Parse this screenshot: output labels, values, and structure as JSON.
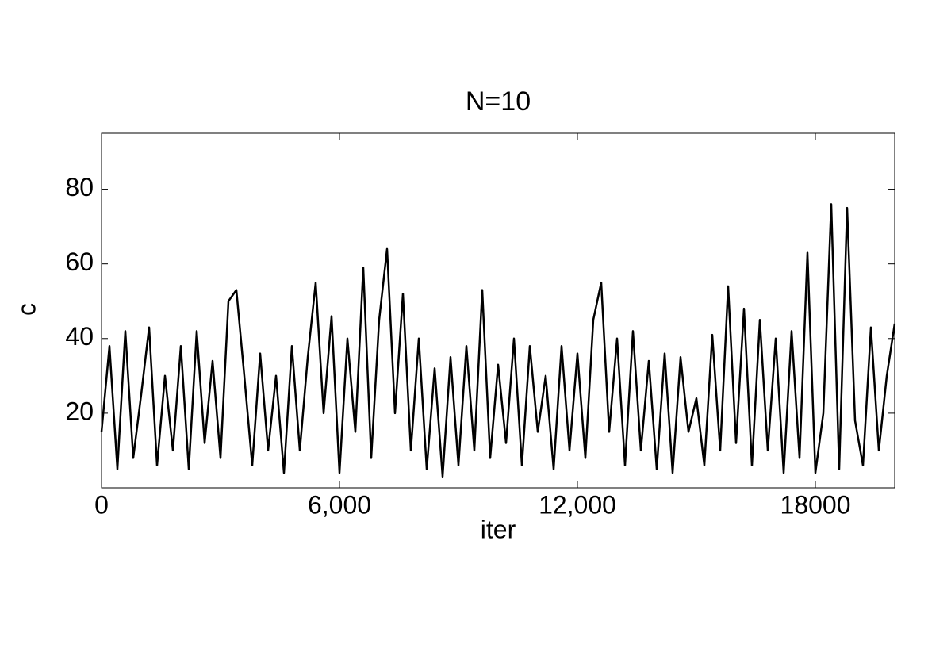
{
  "chart_data": {
    "type": "line",
    "title": "N=10",
    "x_label": "iter",
    "y_label": "c",
    "x": [
      0,
      200,
      400,
      600,
      800,
      1000,
      1200,
      1400,
      1600,
      1800,
      2000,
      2200,
      2400,
      2600,
      2800,
      3000,
      3200,
      3400,
      3600,
      3800,
      4000,
      4200,
      4400,
      4600,
      4800,
      5000,
      5200,
      5400,
      5600,
      5800,
      6000,
      6200,
      6400,
      6600,
      6800,
      7000,
      7200,
      7400,
      7600,
      7800,
      8000,
      8200,
      8400,
      8600,
      8800,
      9000,
      9200,
      9400,
      9600,
      9800,
      10000,
      10200,
      10400,
      10600,
      10800,
      11000,
      11200,
      11400,
      11600,
      11800,
      12000,
      12200,
      12400,
      12600,
      12800,
      13000,
      13200,
      13400,
      13600,
      13800,
      14000,
      14200,
      14400,
      14600,
      14800,
      15000,
      15200,
      15400,
      15600,
      15800,
      16000,
      16200,
      16400,
      16600,
      16800,
      17000,
      17200,
      17400,
      17600,
      17800,
      18000,
      18200,
      18400,
      18600,
      18800,
      19000,
      19200,
      19400,
      19600,
      19800,
      20000
    ],
    "values": [
      15,
      38,
      5,
      42,
      8,
      25,
      43,
      6,
      30,
      10,
      38,
      5,
      42,
      12,
      34,
      8,
      50,
      53,
      30,
      6,
      36,
      10,
      30,
      4,
      38,
      10,
      35,
      55,
      20,
      46,
      4,
      40,
      15,
      59,
      8,
      45,
      64,
      20,
      52,
      10,
      40,
      5,
      32,
      3,
      35,
      6,
      38,
      10,
      53,
      8,
      33,
      12,
      40,
      6,
      38,
      15,
      30,
      5,
      38,
      10,
      36,
      8,
      45,
      55,
      15,
      40,
      6,
      42,
      10,
      34,
      5,
      36,
      4,
      35,
      15,
      24,
      6,
      41,
      10,
      54,
      12,
      48,
      6,
      45,
      10,
      40,
      4,
      42,
      8,
      63,
      4,
      20,
      76,
      5,
      75,
      18,
      6,
      43,
      10,
      30,
      44
    ],
    "color": "#000000",
    "xlim": [
      0,
      20000
    ],
    "xticks": [
      0,
      {
        "value": 6000,
        "label": "6,000"
      },
      {
        "value": 12000,
        "label": "12,000"
      },
      18000
    ],
    "ylim": [
      0,
      95
    ],
    "yticks": [
      20,
      40,
      60,
      80
    ]
  }
}
